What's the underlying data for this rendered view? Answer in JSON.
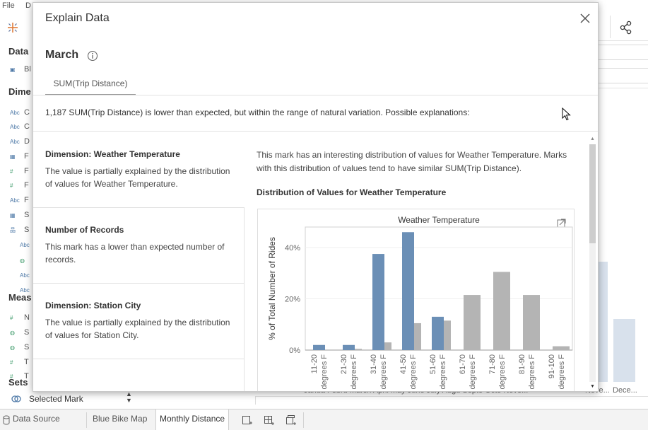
{
  "menubar": {
    "file": "File",
    "data_menu": "D"
  },
  "left_pane": {
    "data_title": "Data",
    "datasource_label": "Bl",
    "dimensions_title": "Dime",
    "dimension_rows": [
      {
        "icon": "Abc",
        "label": "C"
      },
      {
        "icon": "Abc",
        "label": "C"
      },
      {
        "icon": "Abc",
        "label": "D"
      },
      {
        "icon": "cal",
        "label": "F"
      },
      {
        "icon": "#",
        "label": "F"
      },
      {
        "icon": "#",
        "label": "F"
      },
      {
        "icon": "Abc",
        "label": "F"
      },
      {
        "icon": "cal",
        "label": "S"
      },
      {
        "icon": "hier",
        "label": "S"
      },
      {
        "icon": "Abc",
        "label": ""
      },
      {
        "icon": "globe",
        "label": ""
      },
      {
        "icon": "Abc",
        "label": ""
      },
      {
        "icon": "Abc",
        "label": ""
      }
    ],
    "measures_title": "Meas",
    "measure_rows": [
      {
        "icon": "#",
        "label": "N"
      },
      {
        "icon": "globe",
        "label": "S"
      },
      {
        "icon": "globe",
        "label": "S"
      },
      {
        "icon": "#",
        "label": "T"
      },
      {
        "icon": "#",
        "label": "T"
      }
    ],
    "sets_title": "Sets",
    "selected_mark": "Selected Mark"
  },
  "tabs": {
    "data_source": "Data Source",
    "sheets": [
      "Blue Bike Map",
      "Monthly Distance"
    ],
    "active_sheet": "Monthly Distance"
  },
  "background_chart": {
    "x_labels_text": "Janua  Febru  March  April  May  June  July  Augu  Septe  Octo  Nove...",
    "x_label_nove": "Nove...",
    "x_label_dece": "Dece..."
  },
  "dialog": {
    "title": "Explain Data",
    "mark": "March",
    "measure_tab": "SUM(Trip Distance)",
    "summary": "1,187 SUM(Trip Distance) is lower than expected, but within the range of natural variation. Possible explanations:",
    "explanations": [
      {
        "heading": "Dimension: Weather Temperature",
        "text": "The value is partially explained by the distribution of values for Weather Temperature."
      },
      {
        "heading": "Number of Records",
        "text": "This mark has a lower than expected number of records."
      },
      {
        "heading": "Dimension: Station City",
        "text": "The value is partially explained by the distribution of values for Station City."
      }
    ],
    "detail_text": "This mark has an interesting distribution of values for Weather Temperature. Marks with this distribution of values tend to have similar SUM(Trip Distance).",
    "distribution_title": "Distribution of Values for Weather Temperature"
  },
  "colors": {
    "selected_mark": "#6b8fb6",
    "other_marks": "#b4b4b4",
    "accent": "#4e79a7"
  },
  "chart_data": {
    "type": "bar",
    "title": "Weather Temperature",
    "ylabel": "% of Total Number of Rides",
    "xlabel": "",
    "categories": [
      "11-20 degrees F",
      "21-30 degrees F",
      "31-40 degrees F",
      "41-50 degrees F",
      "51-60 degrees F",
      "61-70 degrees F",
      "71-80 degrees F",
      "81-90 degrees F",
      "91-100 degrees F"
    ],
    "yticks": [
      "0%",
      "20%",
      "40%"
    ],
    "ylim": [
      0,
      48
    ],
    "series": [
      {
        "values": [
          2,
          2,
          37.5,
          46,
          13,
          0,
          0,
          0,
          0
        ]
      },
      {
        "values": [
          0,
          0.5,
          3,
          10.5,
          11.5,
          21.5,
          30.5,
          21.5,
          1.5
        ]
      }
    ]
  }
}
